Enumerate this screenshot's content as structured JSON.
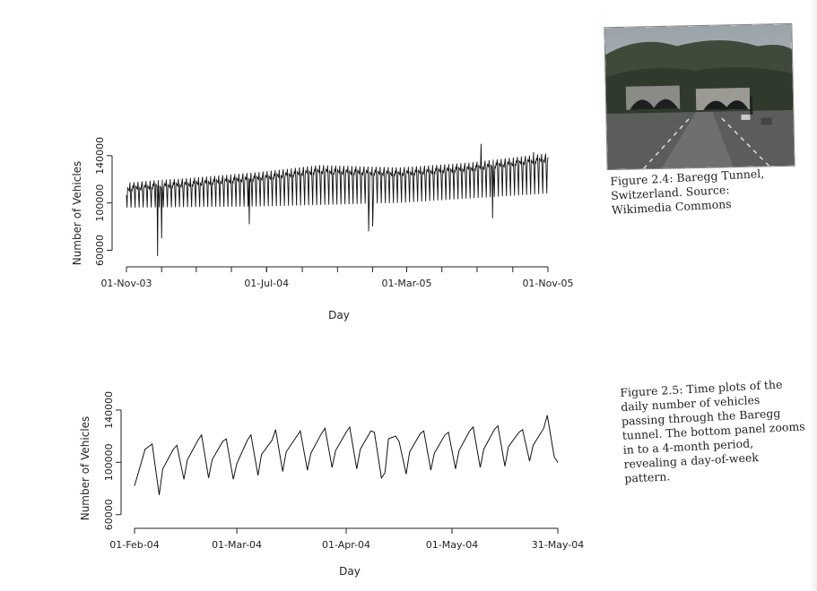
{
  "chart_data": [
    {
      "type": "line",
      "xlabel": "Day",
      "ylabel": "Number of Vehicles",
      "x_tick_labels": [
        "01-Nov-03",
        "01-Jul-04",
        "01-Mar-05",
        "01-Nov-05"
      ],
      "x_tick_dates": [
        "2003-11-01",
        "2004-07-01",
        "2005-03-01",
        "2005-11-01"
      ],
      "y_ticks": [
        60000,
        100000,
        140000
      ],
      "xlim": [
        "2003-11-01",
        "2005-11-01"
      ],
      "ylim": [
        52000,
        152000
      ],
      "series": [
        {
          "pattern": "daily counts with weekly cycle",
          "x_start": "2003-11-01",
          "x_end": "2005-11-01",
          "weekday_level": [
            {
              "x": "2003-11-01",
              "y": 113000
            },
            {
              "x": "2003-12-15",
              "y": 115000
            },
            {
              "x": "2004-02-15",
              "y": 117000
            },
            {
              "x": "2004-06-15",
              "y": 122000
            },
            {
              "x": "2004-10-01",
              "y": 128000
            },
            {
              "x": "2005-02-15",
              "y": 126000
            },
            {
              "x": "2005-06-15",
              "y": 130000
            },
            {
              "x": "2005-11-01",
              "y": 138000
            }
          ],
          "sunday_level": [
            {
              "x": "2003-11-01",
              "y": 96000
            },
            {
              "x": "2004-06-15",
              "y": 97000
            },
            {
              "x": "2005-02-15",
              "y": 100000
            },
            {
              "x": "2005-11-01",
              "y": 108000
            }
          ],
          "dips": [
            {
              "x": "2003-12-25",
              "y": 55000
            },
            {
              "x": "2004-01-01",
              "y": 70000
            },
            {
              "x": "2004-06-01",
              "y": 82000
            },
            {
              "x": "2004-12-25",
              "y": 76000
            },
            {
              "x": "2005-01-01",
              "y": 80000
            },
            {
              "x": "2005-07-28",
              "y": 87000
            }
          ],
          "peaks": [
            {
              "x": "2005-07-08",
              "y": 150000
            },
            {
              "x": "2005-10-07",
              "y": 143000
            }
          ]
        }
      ]
    },
    {
      "type": "line",
      "xlabel": "Day",
      "ylabel": "Number of Vehicles",
      "x_tick_labels": [
        "01-Feb-04",
        "01-Mar-04",
        "01-Apr-04",
        "01-May-04",
        "31-May-04"
      ],
      "x_tick_dates": [
        "2004-02-01",
        "2004-03-01",
        "2004-04-01",
        "2004-05-01",
        "2004-05-31"
      ],
      "y_ticks": [
        60000,
        100000,
        140000
      ],
      "xlim": [
        "2004-02-01",
        "2004-05-31"
      ],
      "ylim": [
        55000,
        142000
      ],
      "series": [
        {
          "weekly_cycles": [
            {
              "x": "2004-02-01",
              "y": 82000
            },
            {
              "x": "2004-02-04",
              "y": 110000
            },
            {
              "x": "2004-02-06",
              "y": 114000
            },
            {
              "x": "2004-02-08",
              "y": 75000
            },
            {
              "x": "2004-02-09",
              "y": 95000
            },
            {
              "x": "2004-02-12",
              "y": 110000
            },
            {
              "x": "2004-02-13",
              "y": 113000
            },
            {
              "x": "2004-02-15",
              "y": 87000
            },
            {
              "x": "2004-02-16",
              "y": 102000
            },
            {
              "x": "2004-02-19",
              "y": 117000
            },
            {
              "x": "2004-02-20",
              "y": 121000
            },
            {
              "x": "2004-02-22",
              "y": 88000
            },
            {
              "x": "2004-02-23",
              "y": 102000
            },
            {
              "x": "2004-02-26",
              "y": 116000
            },
            {
              "x": "2004-02-27",
              "y": 118000
            },
            {
              "x": "2004-02-29",
              "y": 87000
            },
            {
              "x": "2004-03-01",
              "y": 99000
            },
            {
              "x": "2004-03-04",
              "y": 117000
            },
            {
              "x": "2004-03-05",
              "y": 121000
            },
            {
              "x": "2004-03-07",
              "y": 90000
            },
            {
              "x": "2004-03-08",
              "y": 106000
            },
            {
              "x": "2004-03-11",
              "y": 117000
            },
            {
              "x": "2004-03-12",
              "y": 125000
            },
            {
              "x": "2004-03-14",
              "y": 93000
            },
            {
              "x": "2004-03-15",
              "y": 108000
            },
            {
              "x": "2004-03-18",
              "y": 120000
            },
            {
              "x": "2004-03-19",
              "y": 124000
            },
            {
              "x": "2004-03-21",
              "y": 94000
            },
            {
              "x": "2004-03-22",
              "y": 107000
            },
            {
              "x": "2004-03-25",
              "y": 122000
            },
            {
              "x": "2004-03-26",
              "y": 126000
            },
            {
              "x": "2004-03-28",
              "y": 96000
            },
            {
              "x": "2004-03-29",
              "y": 109000
            },
            {
              "x": "2004-04-01",
              "y": 123000
            },
            {
              "x": "2004-04-02",
              "y": 127000
            },
            {
              "x": "2004-04-04",
              "y": 95000
            },
            {
              "x": "2004-04-05",
              "y": 110000
            },
            {
              "x": "2004-04-08",
              "y": 124000
            },
            {
              "x": "2004-04-09",
              "y": 123000
            },
            {
              "x": "2004-04-11",
              "y": 88000
            },
            {
              "x": "2004-04-12",
              "y": 92000
            },
            {
              "x": "2004-04-13",
              "y": 118000
            },
            {
              "x": "2004-04-15",
              "y": 120000
            },
            {
              "x": "2004-04-16",
              "y": 116000
            },
            {
              "x": "2004-04-18",
              "y": 91000
            },
            {
              "x": "2004-04-19",
              "y": 108000
            },
            {
              "x": "2004-04-22",
              "y": 122000
            },
            {
              "x": "2004-04-23",
              "y": 124000
            },
            {
              "x": "2004-04-25",
              "y": 94000
            },
            {
              "x": "2004-04-26",
              "y": 107000
            },
            {
              "x": "2004-04-29",
              "y": 121000
            },
            {
              "x": "2004-04-30",
              "y": 123000
            },
            {
              "x": "2004-05-02",
              "y": 95000
            },
            {
              "x": "2004-05-03",
              "y": 109000
            },
            {
              "x": "2004-05-06",
              "y": 124000
            },
            {
              "x": "2004-05-07",
              "y": 127000
            },
            {
              "x": "2004-05-09",
              "y": 96000
            },
            {
              "x": "2004-05-10",
              "y": 110000
            },
            {
              "x": "2004-05-13",
              "y": 125000
            },
            {
              "x": "2004-05-14",
              "y": 128000
            },
            {
              "x": "2004-05-16",
              "y": 97000
            },
            {
              "x": "2004-05-17",
              "y": 112000
            },
            {
              "x": "2004-05-20",
              "y": 123000
            },
            {
              "x": "2004-05-21",
              "y": 125000
            },
            {
              "x": "2004-05-23",
              "y": 101000
            },
            {
              "x": "2004-05-24",
              "y": 113000
            },
            {
              "x": "2004-05-27",
              "y": 126000
            },
            {
              "x": "2004-05-28",
              "y": 136000
            },
            {
              "x": "2004-05-30",
              "y": 104000
            },
            {
              "x": "2004-05-31",
              "y": 100000
            }
          ]
        }
      ]
    }
  ],
  "figures": {
    "figure_2_4": {
      "caption": "Figure 2.4: Baregg Tunnel, Switzerland. Source: Wikimedia Commons"
    },
    "figure_2_5": {
      "caption": "Figure 2.5: Time plots of the daily number of vehicles passing through the Baregg tunnel. The bottom panel zooms in to a 4-month period, revealing a day-of-week pattern."
    }
  }
}
